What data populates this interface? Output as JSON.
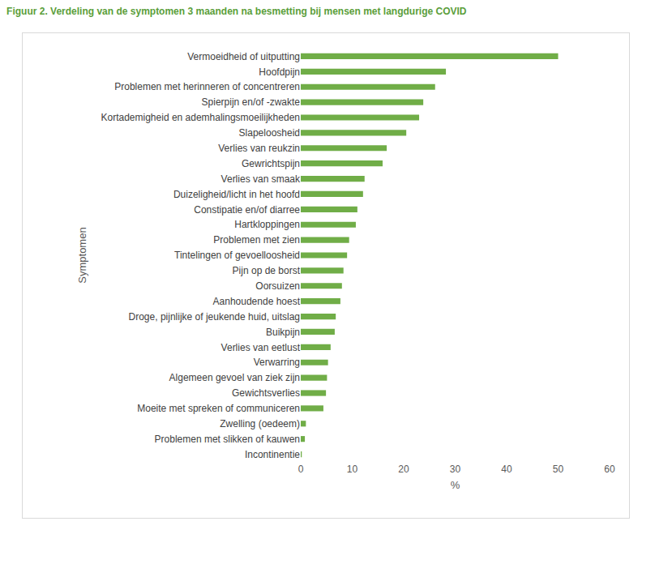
{
  "chart_data": {
    "type": "bar",
    "orientation": "horizontal",
    "title": "Figuur 2. Verdeling van de symptomen 3 maanden na besmetting bij mensen met langdurige COVID",
    "x_label": "%",
    "y_label": "Symptomen",
    "categories": [
      "Vermoeidheid of uitputting",
      "Hoofdpijn",
      "Problemen met herinneren of concentreren",
      "Spierpijn en/of -zwakte",
      "Kortademigheid en ademhalingsmoeilijkheden",
      "Slapeloosheid",
      "Verlies van reukzin",
      "Gewrichtspijn",
      "Verlies van smaak",
      "Duizeligheid/licht in het hoofd",
      "Constipatie en/of diarree",
      "Hartkloppingen",
      "Problemen met zien",
      "Tintelingen of gevoelloosheid",
      "Pijn op de borst",
      "Oorsuizen",
      "Aanhoudende hoest",
      "Droge, pijnlijke of jeukende huid, uitslag",
      "Buikpijn",
      "Verlies van eetlust",
      "Verwarring",
      "Algemeen gevoel van ziek zijn",
      "Gewichtsverlies",
      "Moeite met spreken of communiceren",
      "Zwelling (oedeem)",
      "Problemen met slikken of kauwen",
      "Incontinentie"
    ],
    "values": [
      50,
      28.2,
      26.1,
      23.8,
      23,
      20.5,
      16.7,
      15.9,
      12.4,
      12.1,
      11,
      10.7,
      9.4,
      9,
      8.3,
      8,
      7.7,
      6.8,
      6.6,
      5.8,
      5.3,
      5.1,
      4.9,
      4.4,
      1,
      0.8,
      0.2
    ],
    "color": "#70ad47",
    "xlim": [
      0,
      60
    ],
    "xticks": [
      0,
      10,
      20,
      30,
      40,
      50,
      60
    ],
    "grid": false,
    "data_labels": false
  }
}
